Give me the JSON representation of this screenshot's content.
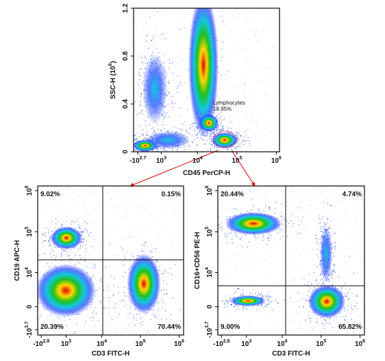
{
  "chart_data": [
    {
      "type": "density",
      "x_label": "CD45 PerCP-H",
      "y_label": "SSC-H (10^6)",
      "x_scale": "biexponential",
      "xlim": [
        -800,
        1200000
      ],
      "xticks": [
        {
          "value": -501,
          "label": "-10^2.7"
        },
        {
          "value": 1000,
          "label": "10^3"
        },
        {
          "value": 10000,
          "label": "10^4"
        },
        {
          "value": 100000,
          "label": "10^5"
        },
        {
          "value": 1000000,
          "label": "10^6"
        }
      ],
      "ylim": [
        0,
        1.2
      ],
      "yticks": [
        0,
        0.4,
        0.8,
        1.2
      ],
      "gate": {
        "name": "Lymphocytes",
        "value": 19.95,
        "value_label": "19.95%",
        "color": "#e00000"
      }
    },
    {
      "type": "quadrant",
      "x_label": "CD3 FITC-H",
      "y_label": "CD19 APC-H",
      "x_scale": "biexponential",
      "y_scale": "biexponential",
      "xlim": [
        -900,
        1300000
      ],
      "xticks": [
        {
          "value": -631,
          "label": "-10^2.8"
        },
        {
          "value": 1000,
          "label": "10^3"
        },
        {
          "value": 10000,
          "label": "10^4"
        },
        {
          "value": 100000,
          "label": "10^5"
        },
        {
          "value": 1000000,
          "label": "10^6"
        }
      ],
      "ylim": [
        -7000,
        1300000
      ],
      "yticks": [
        {
          "value": -5012,
          "label": "-10^3.7"
        },
        0,
        {
          "value": 10000,
          "label": "10^4"
        },
        {
          "value": 100000,
          "label": "10^5"
        },
        {
          "value": 1000000,
          "label": "10^6"
        }
      ],
      "quadrant_values": [
        9.02,
        0.15,
        20.39,
        70.44
      ],
      "quadrant_value_labels": [
        "9.02%",
        "0.15%",
        "20.39%",
        "70.44%"
      ]
    },
    {
      "type": "quadrant",
      "x_label": "CD3 FITC-H",
      "y_label": "CD16+CD56 PE-H",
      "x_scale": "biexponential",
      "y_scale": "biexponential",
      "xlim": [
        -900,
        1300000
      ],
      "xticks": [
        {
          "value": -631,
          "label": "-10^2.8"
        },
        {
          "value": 1000,
          "label": "10^3"
        },
        {
          "value": 10000,
          "label": "10^4"
        },
        {
          "value": 100000,
          "label": "10^5"
        },
        {
          "value": 1000000,
          "label": "10^6"
        }
      ],
      "ylim": [
        -7000,
        1300000
      ],
      "yticks": [
        {
          "value": -5012,
          "label": "-10^3.7"
        },
        0,
        {
          "value": 10000,
          "label": "10^4"
        },
        {
          "value": 100000,
          "label": "10^5"
        },
        {
          "value": 1000000,
          "label": "10^6"
        }
      ],
      "quadrant_values": [
        20.44,
        4.74,
        9.0,
        65.82
      ],
      "quadrant_value_labels": [
        "20.44%",
        "4.74%",
        "9.00%",
        "65.82%"
      ]
    }
  ]
}
